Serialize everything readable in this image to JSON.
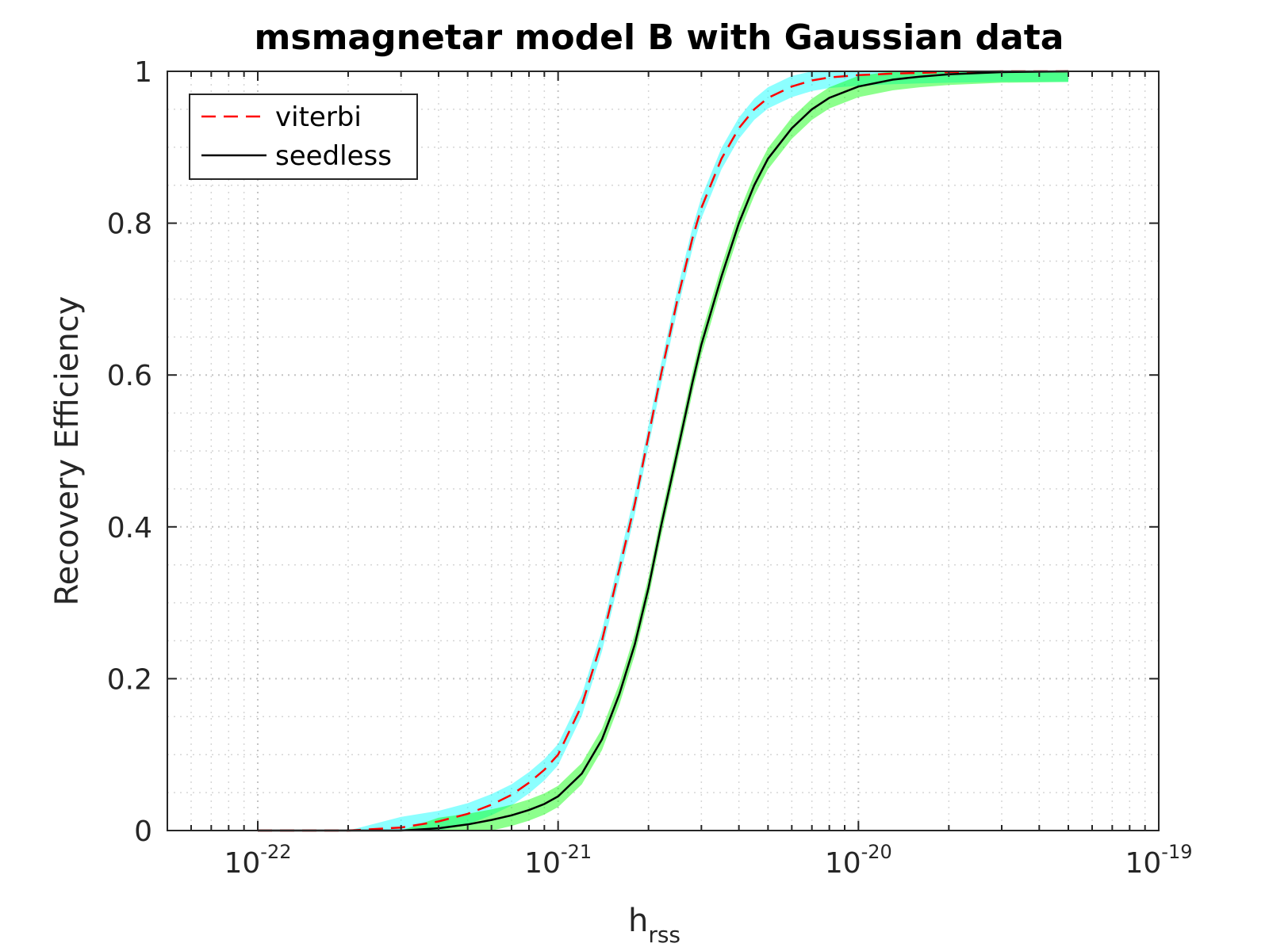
{
  "chart_data": {
    "type": "line",
    "title": "msmagnetar model B with Gaussian data",
    "xlabel": {
      "base": "h",
      "subscript": "rss"
    },
    "ylabel": "Recovery Efficiency",
    "xscale": "log",
    "xlim": [
      5e-23,
      1e-19
    ],
    "ylim": [
      0,
      1
    ],
    "grid": true,
    "minor_grid": true,
    "legend_position": "top-left",
    "x_ticks": [
      {
        "value": 1e-22,
        "base": "10",
        "exp": "-22"
      },
      {
        "value": 1e-21,
        "base": "10",
        "exp": "-21"
      },
      {
        "value": 1e-20,
        "base": "10",
        "exp": "-20"
      },
      {
        "value": 1e-19,
        "base": "10",
        "exp": "-19"
      }
    ],
    "y_ticks": [
      {
        "value": 0,
        "label": "0"
      },
      {
        "value": 0.2,
        "label": "0.2"
      },
      {
        "value": 0.4,
        "label": "0.4"
      },
      {
        "value": 0.6,
        "label": "0.6"
      },
      {
        "value": 0.8,
        "label": "0.8"
      },
      {
        "value": 1,
        "label": "1"
      }
    ],
    "x": [
      1e-22,
      2e-22,
      3e-22,
      4e-22,
      5e-22,
      6e-22,
      7e-22,
      8e-22,
      9e-22,
      1e-21,
      1.2e-21,
      1.4e-21,
      1.6e-21,
      1.8e-21,
      2e-21,
      2.2e-21,
      2.5e-21,
      2.8e-21,
      3e-21,
      3.5e-21,
      4e-21,
      4.5e-21,
      5e-21,
      6e-21,
      7e-21,
      8e-21,
      1e-20,
      1.3e-20,
      1.6e-20,
      2e-20,
      3e-20,
      5e-20
    ],
    "series": [
      {
        "name": "viterbi",
        "color": "#ff0000",
        "dash": "dashed",
        "band_color": "#00ffff",
        "band_halfwidth": 0.014,
        "values": [
          0,
          0,
          0.004,
          0.012,
          0.022,
          0.034,
          0.047,
          0.063,
          0.08,
          0.1,
          0.165,
          0.25,
          0.345,
          0.43,
          0.52,
          0.6,
          0.7,
          0.78,
          0.82,
          0.885,
          0.925,
          0.95,
          0.965,
          0.98,
          0.988,
          0.992,
          0.995,
          0.997,
          0.998,
          0.999,
          1,
          1
        ]
      },
      {
        "name": "seedless",
        "color": "#000000",
        "dash": "solid",
        "band_color": "#00ff00",
        "band_halfwidth": 0.014,
        "values": [
          0,
          0,
          0,
          0.003,
          0.008,
          0.014,
          0.02,
          0.027,
          0.035,
          0.045,
          0.075,
          0.12,
          0.18,
          0.245,
          0.32,
          0.4,
          0.5,
          0.59,
          0.64,
          0.73,
          0.8,
          0.85,
          0.885,
          0.925,
          0.95,
          0.965,
          0.98,
          0.989,
          0.993,
          0.996,
          0.999,
          1
        ]
      }
    ]
  }
}
